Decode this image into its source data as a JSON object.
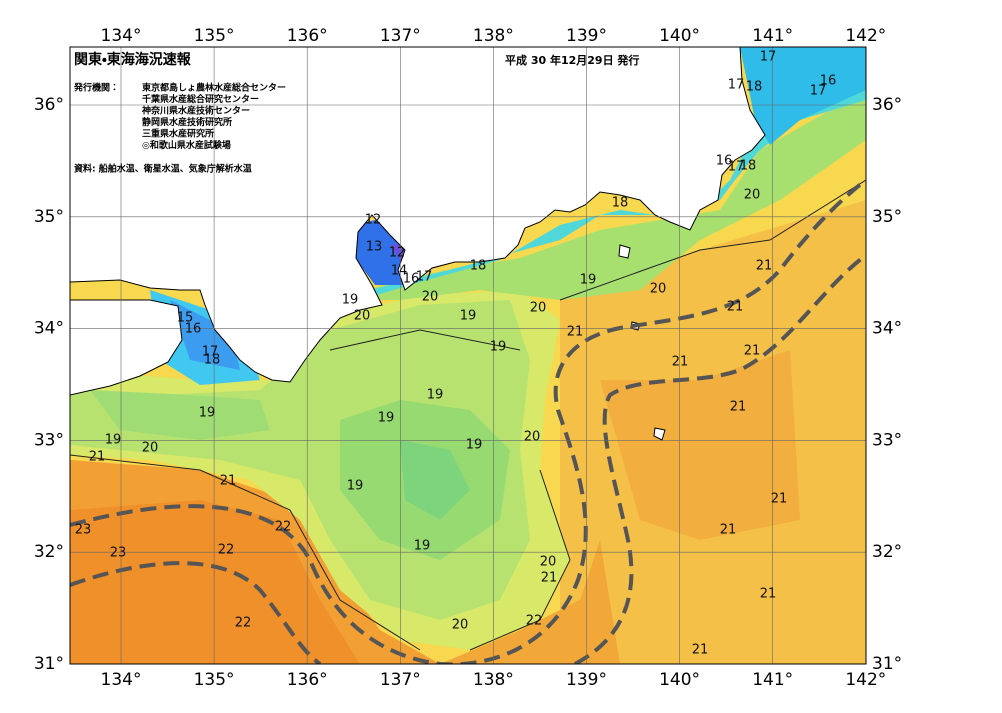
{
  "header": {
    "title": "関東・東海海況速報",
    "date": "平成 30 年12月29日 発行"
  },
  "issuers": {
    "label": "発行機関：",
    "list": [
      "東京都島しょ農林水産総合センター",
      "千葉県水産総合研究センター",
      "神奈川県水産技術センター",
      "静岡県水産技術研究所",
      "三重県水産研究所",
      "◎和歌山県水産試験場"
    ]
  },
  "source": "資料: 船舶水温、衛星水温、気象庁解析水温",
  "map": {
    "lon_ticks": [
      {
        "value": 134,
        "label": "134°"
      },
      {
        "value": 135,
        "label": "135°"
      },
      {
        "value": 136,
        "label": "136°"
      },
      {
        "value": 137,
        "label": "137°"
      },
      {
        "value": 138,
        "label": "138°"
      },
      {
        "value": 139,
        "label": "139°"
      },
      {
        "value": 140,
        "label": "140°"
      },
      {
        "value": 141,
        "label": "141°"
      },
      {
        "value": 142,
        "label": "142°"
      }
    ],
    "lat_ticks": [
      {
        "value": 31,
        "label": "31°"
      },
      {
        "value": 32,
        "label": "32°"
      },
      {
        "value": 33,
        "label": "33°"
      },
      {
        "value": 34,
        "label": "34°"
      },
      {
        "value": 35,
        "label": "35°"
      },
      {
        "value": 36,
        "label": "36°"
      }
    ],
    "isotherm_labels": [
      17,
      16,
      17,
      17,
      18,
      16,
      17,
      18,
      18,
      20,
      21,
      21,
      20,
      19,
      20,
      21,
      21,
      21,
      21,
      18,
      12,
      13,
      12,
      14,
      16,
      17,
      20,
      19,
      20,
      19,
      19,
      15,
      16,
      17,
      18,
      19,
      19,
      19,
      19,
      20,
      21,
      20,
      19,
      21,
      19,
      22,
      23,
      23,
      22,
      19,
      21,
      21,
      20,
      21,
      21,
      22,
      20,
      22,
      21
    ]
  }
}
